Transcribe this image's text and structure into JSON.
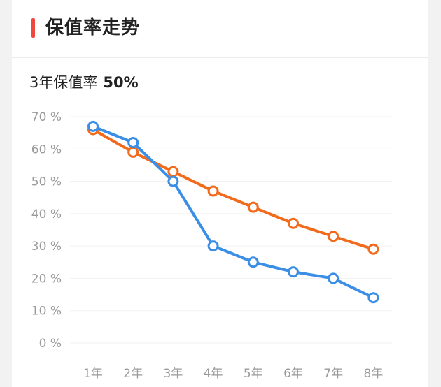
{
  "header": {
    "title": "保值率走势",
    "accent_color": "#f0483e"
  },
  "summary": {
    "label": "3年保值率",
    "value": "50%"
  },
  "chart_data": {
    "type": "line",
    "categories": [
      "1年",
      "2年",
      "3年",
      "4年",
      "5年",
      "6年",
      "7年",
      "8年"
    ],
    "y_ticks": [
      "0 %",
      "10 %",
      "20 %",
      "30 %",
      "40 %",
      "50 %",
      "60 %",
      "70 %"
    ],
    "ylim": [
      0,
      70
    ],
    "grid": true,
    "series": [
      {
        "color": "#f26b1d",
        "values": [
          66,
          59,
          53,
          47,
          42,
          37,
          33,
          29
        ]
      },
      {
        "color": "#3a8ee6",
        "values": [
          67,
          62,
          50,
          30,
          25,
          22,
          20,
          14
        ]
      }
    ]
  }
}
